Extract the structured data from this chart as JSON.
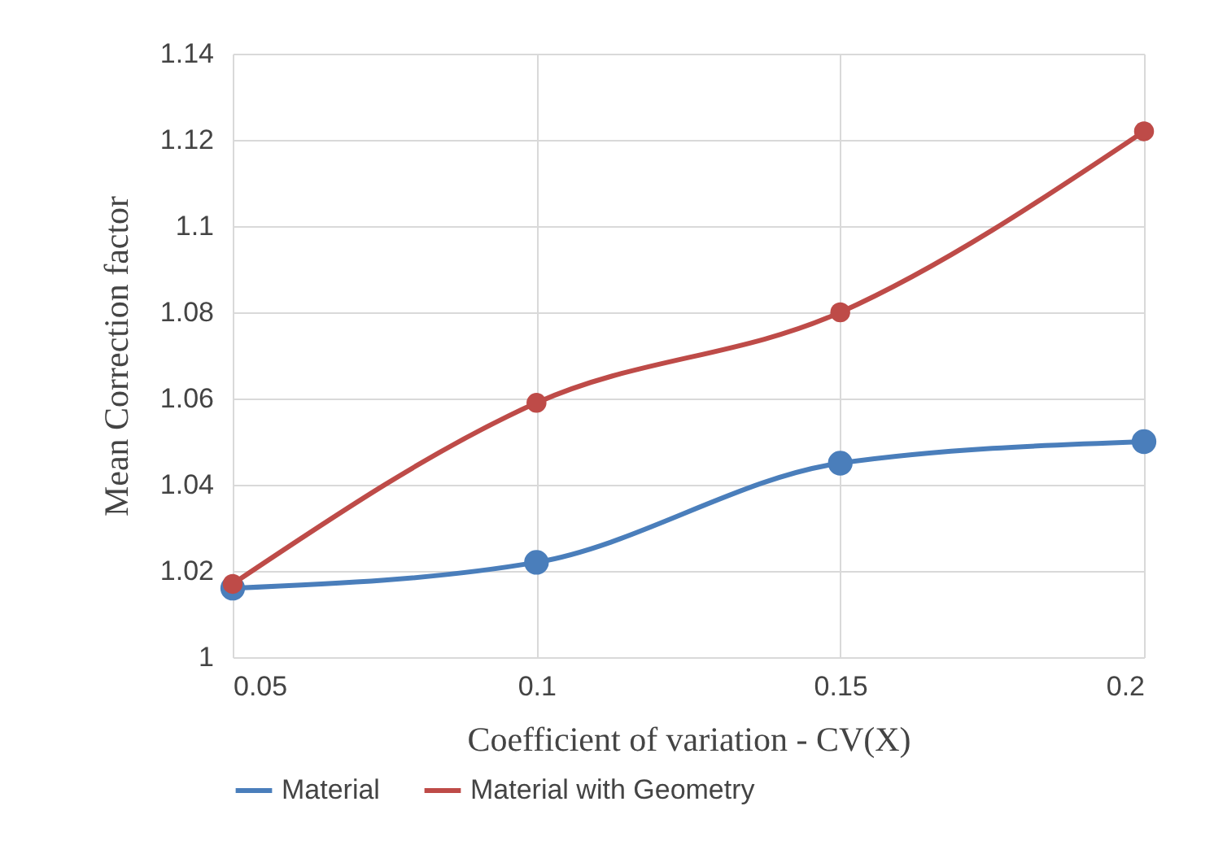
{
  "chart_data": {
    "type": "line",
    "xlabel": "Coefficient of variation - CV(X)",
    "ylabel": "Mean Correction factor",
    "x": [
      0.05,
      0.1,
      0.15,
      0.2
    ],
    "series": [
      {
        "name": "Material",
        "color": "#4a7ebb",
        "values": [
          1.016,
          1.022,
          1.045,
          1.05
        ]
      },
      {
        "name": "Material with Geometry",
        "color": "#be4b48",
        "values": [
          1.017,
          1.059,
          1.08,
          1.122
        ]
      }
    ],
    "xlim": [
      0.05,
      0.2
    ],
    "xticks": [
      0.05,
      0.1,
      0.15,
      0.2
    ],
    "ylim": [
      1,
      1.14
    ],
    "yticks": [
      1,
      1.02,
      1.04,
      1.06,
      1.08,
      1.1,
      1.12,
      1.14
    ],
    "grid": true,
    "legend": "bottom",
    "marker": "circle",
    "line_style": "solid"
  }
}
